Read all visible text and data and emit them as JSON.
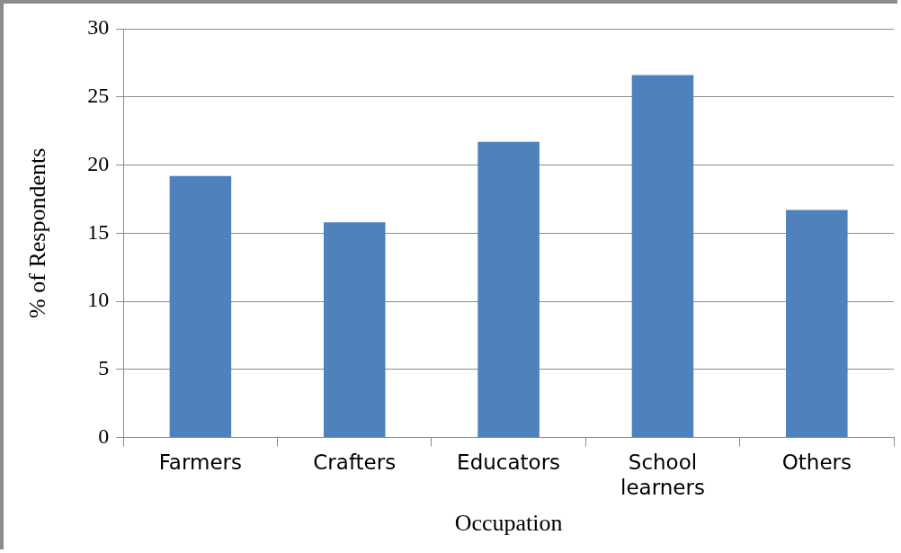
{
  "chart_data": {
    "type": "bar",
    "xlabel": "Occupation",
    "ylabel": "% of Respondents",
    "categories": [
      "Farmers",
      "Crafters",
      "Educators",
      "School learners",
      "Others"
    ],
    "values": [
      19.2,
      15.8,
      21.7,
      26.6,
      16.7
    ],
    "color": "#4f81bd",
    "ylim": [
      0,
      30
    ],
    "yticks": [
      0,
      5,
      10,
      15,
      20,
      25,
      30
    ],
    "grid": "y"
  }
}
